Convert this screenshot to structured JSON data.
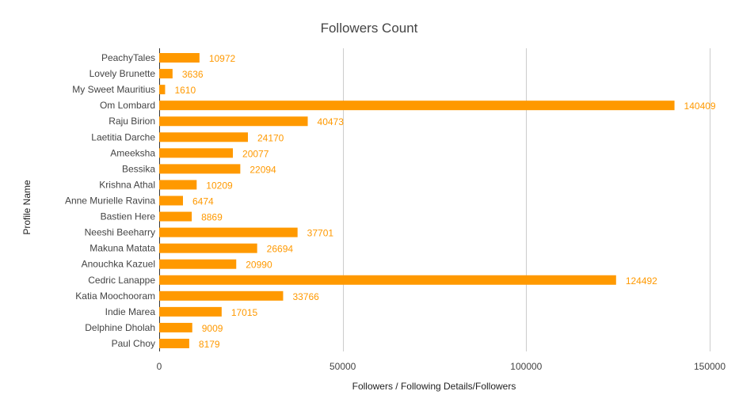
{
  "chart_data": {
    "type": "bar",
    "orientation": "horizontal",
    "title": "Followers Count",
    "xlabel": "Followers / Following Details/Followers",
    "ylabel": "Profile Name",
    "xlim": [
      0,
      150000
    ],
    "x_ticks": [
      0,
      50000,
      100000,
      150000
    ],
    "x_tick_labels": [
      "0",
      "50000",
      "100000",
      "150000"
    ],
    "grid": "vertical",
    "legend": "none",
    "bar_color": "#ff9900",
    "label_color": "#ff9900",
    "categories": [
      "PeachyTales",
      "Lovely Brunette",
      "My Sweet Mauritius",
      "Om Lombard",
      "Raju Birion",
      "Laetitia Darche",
      "Ameeksha",
      "Bessika",
      "Krishna Athal",
      "Anne Murielle Ravina",
      "Bastien Here",
      "Neeshi Beeharry",
      "Makuna Matata",
      "Anouchka Kazuel",
      "Cedric Lanappe",
      "Katia Moochooram",
      "Indie Marea",
      "Delphine Dholah",
      "Paul Choy"
    ],
    "values": [
      10972,
      3636,
      1610,
      140409,
      40473,
      24170,
      20077,
      22094,
      10209,
      6474,
      8869,
      37701,
      26694,
      20990,
      124492,
      33766,
      17015,
      9009,
      8179
    ],
    "value_labels": [
      "10972",
      "3636",
      "1610",
      "140409",
      "40473",
      "24170",
      "20077",
      "22094",
      "10209",
      "6474",
      "8869",
      "37701",
      "26694",
      "20990",
      "124492",
      "33766",
      "17015",
      "9009",
      "8179"
    ]
  }
}
